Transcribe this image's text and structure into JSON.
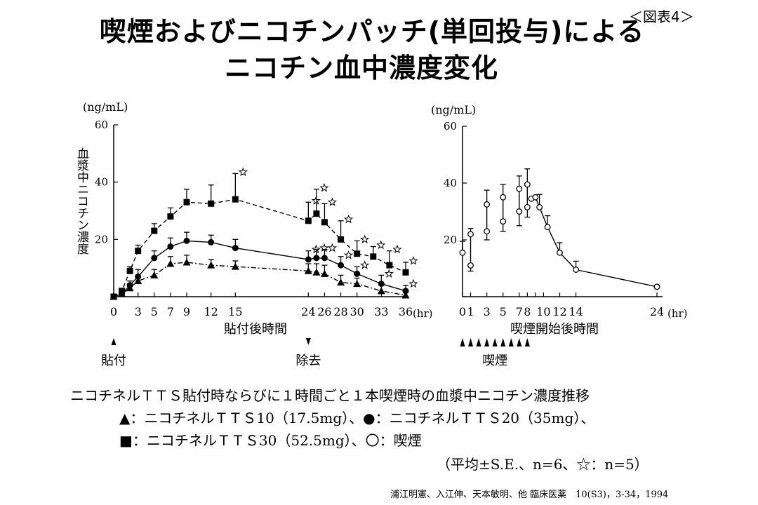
{
  "header": {
    "title_line1": "喫煙およびニコチンパッチ(単回投与)による",
    "title_line2": "ニコチン血中濃度変化",
    "figure_label": "＜図表4＞"
  },
  "chart_data": [
    {
      "type": "line",
      "ylabel": "血漿中ニコチン濃度",
      "yunit": "(ng/mL)",
      "xlabel": "貼付後時間",
      "xunit": "(hr)",
      "ylim": [
        0,
        60
      ],
      "yticks": [
        0,
        20,
        40,
        60
      ],
      "ytick_labels": [
        "",
        "20",
        "40",
        "60"
      ],
      "xlim": [
        0,
        36
      ],
      "xticks": [
        0,
        3,
        5,
        7,
        9,
        12,
        15,
        24,
        26,
        28,
        30,
        33,
        36
      ],
      "xtick_labels": [
        "0",
        "3",
        "5",
        "7",
        "9",
        "12",
        "15",
        "24",
        "26",
        "28",
        "30",
        "33",
        "36"
      ],
      "grid": false,
      "legend": "caption below",
      "series": [
        {
          "symbol": "square",
          "line_style": "dashed",
          "x": [
            0,
            1,
            2,
            3,
            5,
            7,
            9,
            12,
            15,
            24,
            25,
            26,
            28,
            30,
            32,
            34,
            36
          ],
          "y": [
            0,
            2,
            9,
            16,
            23,
            28,
            33,
            32.5,
            34,
            26.5,
            29,
            26,
            20,
            15,
            14,
            11,
            8.5
          ],
          "err": [
            0,
            0.8,
            1.5,
            2,
            2.5,
            3,
            4.5,
            6.5,
            9,
            6.5,
            8.5,
            6.5,
            6.5,
            4.5,
            3.5,
            5,
            3.5
          ],
          "star": [
            false,
            false,
            false,
            false,
            false,
            false,
            false,
            false,
            true,
            true,
            true,
            true,
            true,
            true,
            true,
            true,
            true
          ]
        },
        {
          "symbol": "circle-filled",
          "line_style": "solid",
          "x": [
            0,
            1,
            2,
            3,
            5,
            7,
            9,
            12,
            15,
            24,
            25,
            26,
            28,
            30,
            33,
            36
          ],
          "y": [
            0,
            1,
            4,
            7,
            13.5,
            17.5,
            19.5,
            19,
            17,
            13,
            13.5,
            13.5,
            11,
            8,
            4.5,
            2
          ],
          "err": [
            0,
            0.8,
            1.5,
            2.5,
            2.5,
            3,
            3,
            2.5,
            3,
            3,
            3,
            3,
            3,
            2.5,
            3,
            2
          ],
          "star": [
            false,
            false,
            false,
            false,
            false,
            false,
            false,
            false,
            false,
            true,
            true,
            true,
            true,
            true,
            true,
            true
          ]
        },
        {
          "symbol": "triangle",
          "line_style": "dashdot",
          "x": [
            0,
            1,
            2,
            3,
            5,
            7,
            9,
            12,
            15,
            24,
            25,
            26,
            28,
            30,
            33,
            36
          ],
          "y": [
            0,
            1,
            3,
            5.5,
            7.5,
            11.5,
            12,
            11,
            10.5,
            9,
            8.5,
            8,
            5,
            4.5,
            2,
            0.5
          ],
          "err": [
            0,
            0.8,
            1.5,
            2,
            2,
            2.5,
            2.5,
            2,
            2,
            2.5,
            3,
            3,
            2.5,
            2,
            2,
            1
          ],
          "star": [
            false,
            false,
            false,
            false,
            false,
            false,
            false,
            false,
            false,
            false,
            false,
            false,
            false,
            false,
            false,
            false
          ]
        }
      ],
      "annotations": [
        {
          "label": "貼付",
          "x": 0,
          "marker": "up-arrow"
        },
        {
          "label": "除去",
          "x": 24,
          "marker": "down-arrow"
        }
      ]
    },
    {
      "type": "line",
      "yunit": "(ng/mL)",
      "xlabel": "喫煙開始後時間",
      "xunit": "(hr)",
      "ylim": [
        0,
        60
      ],
      "yticks": [
        0,
        20,
        40,
        60
      ],
      "ytick_labels": [
        "",
        "20",
        "40",
        "60"
      ],
      "xlim": [
        0,
        24
      ],
      "xticks": [
        0,
        1,
        3,
        5,
        7,
        8,
        9,
        10,
        12,
        14,
        24
      ],
      "xtick_labels": [
        "0",
        "1",
        "3",
        "5",
        "7",
        "8",
        "",
        "10",
        "12",
        "14",
        "24"
      ],
      "grid": false,
      "legend": "caption below",
      "series": [
        {
          "symbol": "circle-open",
          "line_style": "solid",
          "segments": [
            {
              "x": [
                0
              ],
              "y": [
                15.5
              ],
              "err_top": [
                4
              ],
              "err_bottom": [
                0
              ]
            },
            {
              "x": [
                1,
                1
              ],
              "y": [
                11,
                22
              ],
              "err_top": [
                0,
                2
              ],
              "err_bottom": [
                2,
                0
              ]
            },
            {
              "x": [
                3,
                3
              ],
              "y": [
                23,
                32.5
              ],
              "err_top": [
                0,
                5
              ],
              "err_bottom": [
                3,
                0
              ]
            },
            {
              "x": [
                5,
                5
              ],
              "y": [
                26.5,
                35
              ],
              "err_top": [
                0,
                4.5
              ],
              "err_bottom": [
                3.5,
                0
              ]
            },
            {
              "x": [
                7,
                7
              ],
              "y": [
                30,
                38
              ],
              "err_top": [
                0,
                4.5
              ],
              "err_bottom": [
                5,
                0
              ]
            },
            {
              "x": [
                8,
                8
              ],
              "y": [
                31.5,
                39.5
              ],
              "err_top": [
                0,
                5.5
              ],
              "err_bottom": [
                3.5,
                0
              ]
            },
            {
              "x": [
                8.5,
                9,
                9.5,
                10.5,
                12,
                14,
                24
              ],
              "y": [
                34.5,
                35,
                31.5,
                24.5,
                15.5,
                9.5,
                3.5
              ],
              "err_top": [
                0,
                0,
                4.5,
                4,
                3.5,
                3,
                0
              ],
              "err_bottom": [
                0,
                0,
                0,
                0,
                0,
                0,
                0
              ]
            }
          ]
        }
      ],
      "annotations": [
        {
          "label": "喫煙",
          "x_start": 0,
          "x_end": 8,
          "count": 9,
          "marker": "up-arrow"
        }
      ]
    }
  ],
  "captions": {
    "line1": "ニコチネルＴＴＳ貼付時ならびに１時間ごと１本喫煙時の血漿中ニコチン濃度推移",
    "line2": "▲：ニコチネルＴＴＳ10（17.5mg）、●：ニコチネルＴＴＳ20（35mg）、",
    "line3": "■：ニコチネルＴＴＳ30（52.5mg）、〇：喫煙",
    "line4": "（平均±S.E.、n=6、☆：n=5）"
  },
  "citation": "浦江明憲、入江伸、天本敏明、他 臨床医薬　10(S3)，3-34，1994"
}
